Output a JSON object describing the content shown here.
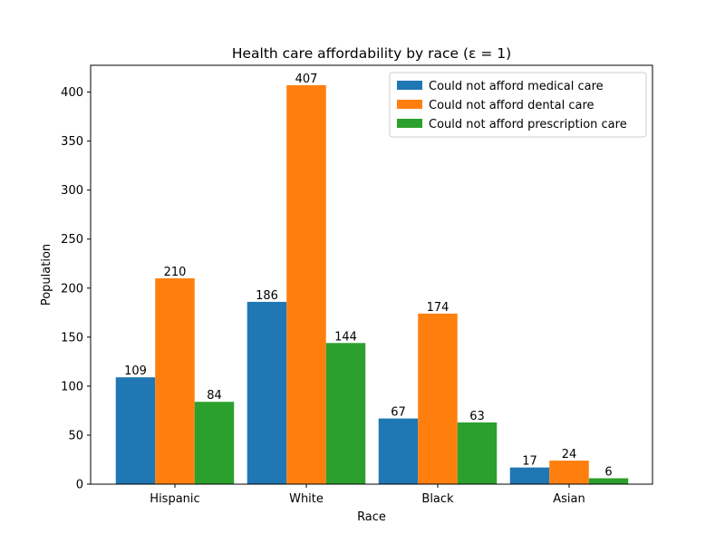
{
  "chart_data": {
    "type": "bar",
    "title": "Health care affordability by race (ε = 1)",
    "xlabel": "Race",
    "ylabel": "Population",
    "categories": [
      "Hispanic",
      "White",
      "Black",
      "Asian"
    ],
    "series": [
      {
        "name": "Could not afford medical care",
        "color": "#1f77b4",
        "values": [
          109,
          186,
          67,
          17
        ]
      },
      {
        "name": "Could not afford dental care",
        "color": "#ff7f0e",
        "values": [
          210,
          407,
          174,
          24
        ]
      },
      {
        "name": "Could not afford prescription care",
        "color": "#2ca02c",
        "values": [
          84,
          144,
          63,
          6
        ]
      }
    ],
    "ylim": [
      0,
      427.35
    ],
    "yticks": [
      0,
      50,
      100,
      150,
      200,
      250,
      300,
      350,
      400
    ],
    "legend_position": "top-right",
    "grid": false
  }
}
